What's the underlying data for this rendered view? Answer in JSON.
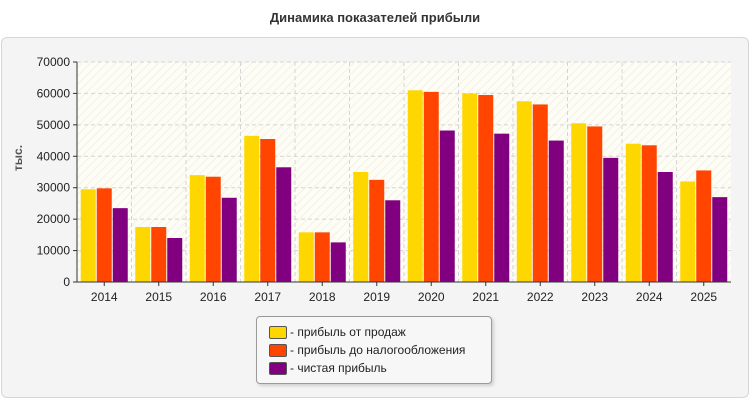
{
  "chart_data": {
    "type": "bar",
    "title": "Динамика показателей прибыли",
    "ylabel": "тыс.",
    "xlabel": "",
    "ylim": [
      0,
      70000
    ],
    "yticks": [
      0,
      10000,
      20000,
      30000,
      40000,
      50000,
      60000,
      70000
    ],
    "grid": true,
    "legend_position": "bottom-center",
    "categories": [
      "2014",
      "2015",
      "2016",
      "2017",
      "2018",
      "2019",
      "2020",
      "2021",
      "2022",
      "2023",
      "2024",
      "2025"
    ],
    "series": [
      {
        "name": "- прибыль от продаж",
        "color": "#FFD700",
        "values": [
          29500,
          17500,
          34000,
          46500,
          15800,
          35000,
          61000,
          60000,
          57500,
          50500,
          44000,
          32000
        ]
      },
      {
        "name": "- прибыль до налогообложения",
        "color": "#FF4500",
        "values": [
          29800,
          17500,
          33500,
          45500,
          15800,
          32500,
          60500,
          59500,
          56500,
          49500,
          43500,
          35500
        ]
      },
      {
        "name": "- чистая прибыль",
        "color": "#800080",
        "values": [
          23500,
          14000,
          26800,
          36500,
          12600,
          26000,
          48200,
          47200,
          45000,
          39500,
          35000,
          27000
        ]
      }
    ]
  }
}
